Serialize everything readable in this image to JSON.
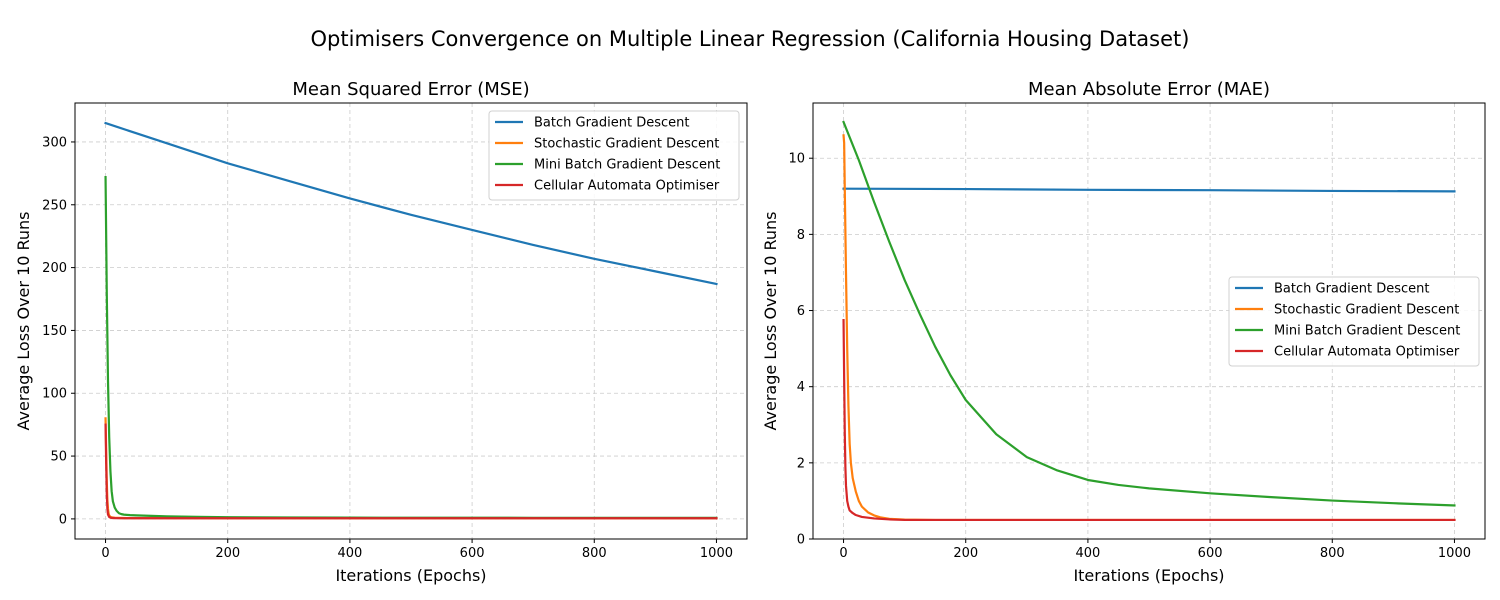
{
  "figure": {
    "suptitle": "Optimisers Convergence on Multiple Linear Regression (California Housing Dataset)"
  },
  "colors": {
    "Batch Gradient Descent": "#1f77b4",
    "Stochastic Gradient Descent": "#ff7f0e",
    "Mini Batch Gradient Descent": "#2ca02c",
    "Cellular Automata Optimiser": "#d62728",
    "grid": "#cccccc"
  },
  "chart_data": [
    {
      "type": "line",
      "title": "Mean Squared Error (MSE)",
      "xlabel": "Iterations (Epochs)",
      "ylabel": "Average Loss Over 10 Runs",
      "xlim": [
        -50,
        1050
      ],
      "ylim": [
        -16,
        331
      ],
      "xticks": [
        0,
        200,
        400,
        600,
        800,
        1000
      ],
      "yticks": [
        0,
        50,
        100,
        150,
        200,
        250,
        300
      ],
      "grid": true,
      "legend_loc": "upper right",
      "series": [
        {
          "name": "Batch Gradient Descent",
          "x": [
            0,
            100,
            200,
            300,
            400,
            500,
            600,
            700,
            800,
            900,
            1000
          ],
          "y": [
            315,
            299,
            283,
            269,
            255,
            242,
            230,
            218,
            207,
            197,
            187
          ]
        },
        {
          "name": "Stochastic Gradient Descent",
          "x": [
            0,
            1,
            2,
            3,
            4,
            5,
            6,
            8,
            10,
            15,
            20,
            30,
            50,
            100,
            200,
            400,
            600,
            800,
            1000
          ],
          "y": [
            80,
            55,
            30,
            15,
            8,
            4.5,
            2.8,
            1.6,
            1.2,
            0.9,
            0.8,
            0.7,
            0.6,
            0.55,
            0.5,
            0.5,
            0.5,
            0.5,
            0.5
          ]
        },
        {
          "name": "Mini Batch Gradient Descent",
          "x": [
            0,
            2,
            4,
            6,
            8,
            10,
            12,
            15,
            18,
            22,
            26,
            30,
            40,
            50,
            75,
            100,
            150,
            200,
            300,
            400,
            500,
            600,
            700,
            800,
            900,
            1000
          ],
          "y": [
            272,
            180,
            110,
            65,
            38,
            22,
            14,
            9,
            6.5,
            4.5,
            3.8,
            3.4,
            3.0,
            2.8,
            2.4,
            2.0,
            1.6,
            1.3,
            1.1,
            1.0,
            0.95,
            0.9,
            0.88,
            0.85,
            0.82,
            0.8
          ]
        },
        {
          "name": "Cellular Automata Optimiser",
          "x": [
            0,
            1,
            2,
            3,
            4,
            6,
            8,
            10,
            15,
            20,
            30,
            50,
            100,
            200,
            400,
            600,
            800,
            1000
          ],
          "y": [
            75,
            45,
            20,
            8,
            3.5,
            1.5,
            1.0,
            0.8,
            0.6,
            0.55,
            0.5,
            0.5,
            0.5,
            0.5,
            0.5,
            0.5,
            0.5,
            0.5
          ]
        }
      ]
    },
    {
      "type": "line",
      "title": "Mean Absolute Error (MAE)",
      "xlabel": "Iterations (Epochs)",
      "ylabel": "Average Loss Over 10 Runs",
      "xlim": [
        -50,
        1050
      ],
      "ylim": [
        0,
        11.45
      ],
      "xticks": [
        0,
        200,
        400,
        600,
        800,
        1000
      ],
      "yticks": [
        0,
        2,
        4,
        6,
        8,
        10
      ],
      "grid": true,
      "legend_loc": "center right",
      "series": [
        {
          "name": "Batch Gradient Descent",
          "x": [
            0,
            200,
            400,
            600,
            800,
            1000
          ],
          "y": [
            9.2,
            9.19,
            9.17,
            9.16,
            9.14,
            9.13
          ]
        },
        {
          "name": "Stochastic Gradient Descent",
          "x": [
            0,
            1,
            2,
            4,
            6,
            8,
            10,
            12,
            15,
            20,
            25,
            30,
            40,
            50,
            60,
            75,
            100,
            150,
            200,
            400,
            600,
            800,
            1000
          ],
          "y": [
            10.6,
            10.4,
            9.2,
            7.0,
            5.0,
            3.5,
            2.5,
            2.0,
            1.6,
            1.25,
            1.0,
            0.85,
            0.7,
            0.62,
            0.57,
            0.53,
            0.51,
            0.5,
            0.5,
            0.5,
            0.5,
            0.5,
            0.5
          ]
        },
        {
          "name": "Mini Batch Gradient Descent",
          "x": [
            0,
            25,
            50,
            75,
            100,
            125,
            150,
            175,
            200,
            250,
            300,
            350,
            400,
            450,
            500,
            600,
            700,
            800,
            900,
            1000
          ],
          "y": [
            10.95,
            9.95,
            8.85,
            7.8,
            6.8,
            5.9,
            5.05,
            4.3,
            3.65,
            2.75,
            2.15,
            1.8,
            1.55,
            1.42,
            1.33,
            1.2,
            1.1,
            1.01,
            0.94,
            0.88
          ]
        },
        {
          "name": "Cellular Automata Optimiser",
          "x": [
            0,
            1,
            2,
            3,
            4,
            6,
            8,
            10,
            15,
            20,
            30,
            50,
            80,
            100,
            200,
            400,
            600,
            800,
            1000
          ],
          "y": [
            5.75,
            4.2,
            2.8,
            1.9,
            1.4,
            1.0,
            0.85,
            0.75,
            0.68,
            0.63,
            0.58,
            0.54,
            0.51,
            0.5,
            0.5,
            0.5,
            0.5,
            0.5,
            0.5
          ]
        }
      ]
    }
  ]
}
